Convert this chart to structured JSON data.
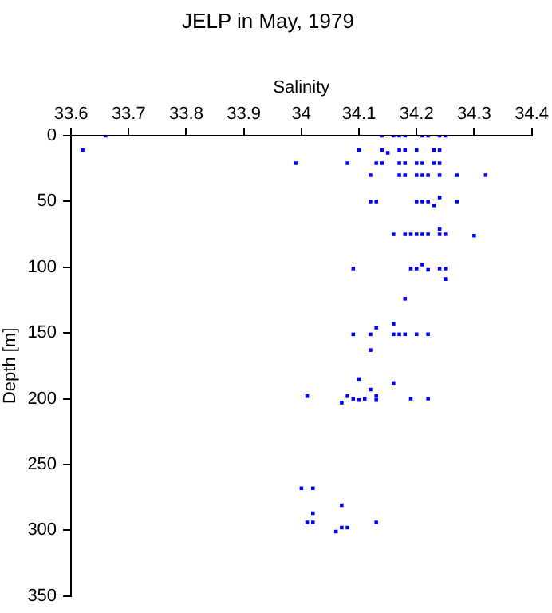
{
  "chart_data": {
    "type": "scatter",
    "title": "JELP in May, 1979",
    "xlabel": "Salinity",
    "ylabel": "Depth [m]",
    "xlim": [
      33.6,
      34.4
    ],
    "xticks": [
      33.6,
      33.7,
      33.8,
      33.9,
      34,
      34.1,
      34.2,
      34.3,
      34.4
    ],
    "ylim": [
      350,
      0
    ],
    "yticks": [
      0,
      50,
      100,
      150,
      200,
      250,
      300,
      350
    ],
    "grid": false,
    "marker": "square",
    "legend": false,
    "series": [
      {
        "color": "#0000ff",
        "x": [
          33.66,
          34.14,
          34.16,
          34.17,
          34.18,
          34.21,
          34.22,
          34.24,
          34.25,
          33.62,
          34.1,
          34.14,
          34.15,
          34.17,
          34.18,
          34.2,
          34.23,
          34.24,
          33.99,
          34.08,
          34.13,
          34.14,
          34.17,
          34.18,
          34.2,
          34.21,
          34.23,
          34.24,
          34.12,
          34.17,
          34.18,
          34.2,
          34.21,
          34.22,
          34.24,
          34.27,
          34.32,
          34.12,
          34.13,
          34.2,
          34.21,
          34.22,
          34.23,
          34.24,
          34.27,
          34.16,
          34.18,
          34.19,
          34.2,
          34.21,
          34.22,
          34.24,
          34.24,
          34.25,
          34.3,
          34.09,
          34.19,
          34.2,
          34.21,
          34.22,
          34.24,
          34.25,
          34.25,
          34.18,
          34.16,
          34.13,
          34.09,
          34.12,
          34.16,
          34.17,
          34.18,
          34.2,
          34.22,
          34.12,
          34.1,
          34.16,
          34.12,
          34.01,
          34.08,
          34.13,
          34.09,
          34.11,
          34.19,
          34.22,
          34.1,
          34.13,
          34.07,
          34.0,
          34.02,
          34.07,
          34.02,
          34.01,
          34.02,
          34.13,
          34.07,
          34.08,
          34.06
        ],
        "values": [
          0,
          0,
          0,
          0,
          0,
          0,
          0,
          0,
          0,
          11,
          11,
          11,
          13,
          11,
          11,
          11,
          11,
          11,
          21,
          21,
          21,
          21,
          21,
          21,
          21,
          21,
          21,
          21,
          30,
          30,
          30,
          30,
          30,
          30,
          30,
          30,
          30,
          50,
          50,
          50,
          50,
          50,
          53,
          47,
          50,
          75,
          75,
          75,
          75,
          75,
          75,
          71,
          75,
          75,
          76,
          101,
          101,
          101,
          98,
          102,
          101,
          101,
          109,
          124,
          143,
          146,
          151,
          151,
          151,
          151,
          151,
          151,
          151,
          163,
          185,
          188,
          193,
          198,
          198,
          198,
          200,
          200,
          200,
          200,
          201,
          201,
          203,
          268,
          268,
          281,
          287,
          294,
          294,
          294,
          298,
          298,
          301
        ]
      }
    ]
  }
}
